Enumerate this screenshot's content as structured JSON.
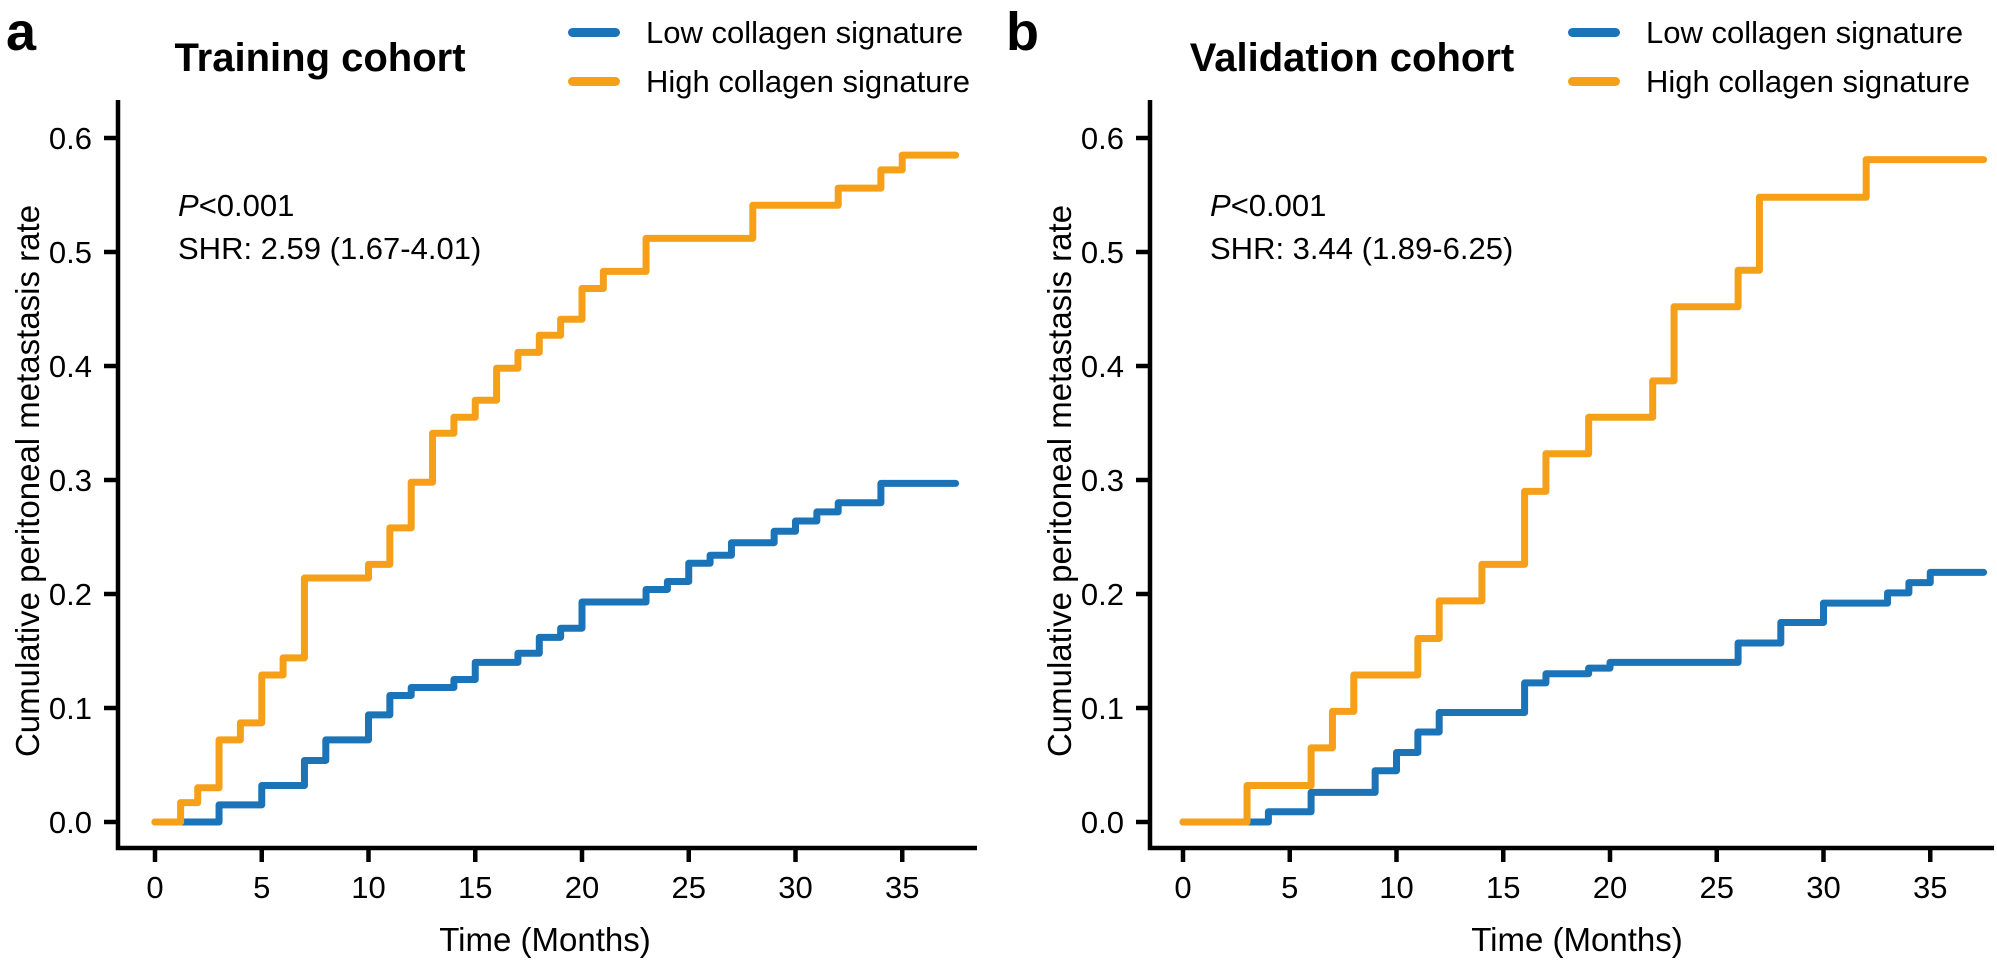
{
  "axes": {
    "xlabel": "Time (Months)",
    "ylabel": "Cumulative peritoneal metastasis rate",
    "xticks": [
      0,
      5,
      10,
      15,
      20,
      25,
      30,
      35
    ],
    "ytick_labels": [
      "0.0",
      "0.1",
      "0.2",
      "0.3",
      "0.4",
      "0.5",
      "0.6"
    ],
    "xlim": [
      0,
      38.5
    ],
    "ylim": [
      0,
      0.62
    ],
    "grid": false,
    "legend_position": "top-right"
  },
  "colors": {
    "low": "#1b74b8",
    "high": "#f6a01a",
    "text": "#000000"
  },
  "chart_data": [
    {
      "type": "line",
      "subtype": "cumulative-incidence-step",
      "panel_label": "a",
      "title": "Training cohort",
      "p_prefix": "P",
      "p_rest": "<0.001",
      "shr": "SHR: 2.59 (1.67-4.01)",
      "x_end": 37.5,
      "series": [
        {
          "name": "Low collagen signature",
          "color_key": "low",
          "steps": [
            [
              0,
              0
            ],
            [
              3,
              0.015
            ],
            [
              5,
              0.032
            ],
            [
              7,
              0.054
            ],
            [
              8,
              0.072
            ],
            [
              10,
              0.094
            ],
            [
              11,
              0.111
            ],
            [
              12,
              0.118
            ],
            [
              14,
              0.125
            ],
            [
              15,
              0.14
            ],
            [
              17,
              0.148
            ],
            [
              18,
              0.162
            ],
            [
              19,
              0.17
            ],
            [
              20,
              0.193
            ],
            [
              23,
              0.204
            ],
            [
              24,
              0.211
            ],
            [
              25,
              0.227
            ],
            [
              26,
              0.234
            ],
            [
              27,
              0.245
            ],
            [
              29,
              0.255
            ],
            [
              30,
              0.264
            ],
            [
              31,
              0.272
            ],
            [
              32,
              0.28
            ],
            [
              34,
              0.297
            ]
          ]
        },
        {
          "name": "High collagen signature",
          "color_key": "high",
          "steps": [
            [
              0,
              0
            ],
            [
              1.2,
              0.017
            ],
            [
              2,
              0.03
            ],
            [
              3,
              0.072
            ],
            [
              4,
              0.087
            ],
            [
              5,
              0.129
            ],
            [
              6,
              0.144
            ],
            [
              7,
              0.214
            ],
            [
              10,
              0.226
            ],
            [
              11,
              0.258
            ],
            [
              12,
              0.298
            ],
            [
              13,
              0.341
            ],
            [
              14,
              0.355
            ],
            [
              15,
              0.37
            ],
            [
              16,
              0.398
            ],
            [
              17,
              0.412
            ],
            [
              18,
              0.427
            ],
            [
              19,
              0.441
            ],
            [
              20,
              0.468
            ],
            [
              21,
              0.483
            ],
            [
              23,
              0.512
            ],
            [
              28,
              0.541
            ],
            [
              32,
              0.556
            ],
            [
              34,
              0.572
            ],
            [
              35,
              0.585
            ]
          ]
        }
      ]
    },
    {
      "type": "line",
      "subtype": "cumulative-incidence-step",
      "panel_label": "b",
      "title": "Validation cohort",
      "p_prefix": "P",
      "p_rest": "<0.001",
      "shr": "SHR: 3.44 (1.89-6.25)",
      "x_end": 37.5,
      "series": [
        {
          "name": "Low collagen signature",
          "color_key": "low",
          "steps": [
            [
              0,
              0
            ],
            [
              4,
              0.009
            ],
            [
              6,
              0.026
            ],
            [
              9,
              0.045
            ],
            [
              10,
              0.061
            ],
            [
              11,
              0.079
            ],
            [
              12,
              0.096
            ],
            [
              16,
              0.122
            ],
            [
              17,
              0.13
            ],
            [
              19,
              0.135
            ],
            [
              20,
              0.14
            ],
            [
              26,
              0.157
            ],
            [
              28,
              0.175
            ],
            [
              30,
              0.192
            ],
            [
              33,
              0.201
            ],
            [
              34,
              0.21
            ],
            [
              35,
              0.219
            ]
          ]
        },
        {
          "name": "High collagen signature",
          "color_key": "high",
          "steps": [
            [
              0,
              0
            ],
            [
              3,
              0.032
            ],
            [
              6,
              0.065
            ],
            [
              7,
              0.097
            ],
            [
              8,
              0.129
            ],
            [
              11,
              0.161
            ],
            [
              12,
              0.194
            ],
            [
              14,
              0.226
            ],
            [
              16,
              0.29
            ],
            [
              17,
              0.323
            ],
            [
              19,
              0.355
            ],
            [
              22,
              0.387
            ],
            [
              23,
              0.452
            ],
            [
              26,
              0.484
            ],
            [
              27,
              0.548
            ],
            [
              32,
              0.581
            ]
          ]
        }
      ]
    }
  ]
}
